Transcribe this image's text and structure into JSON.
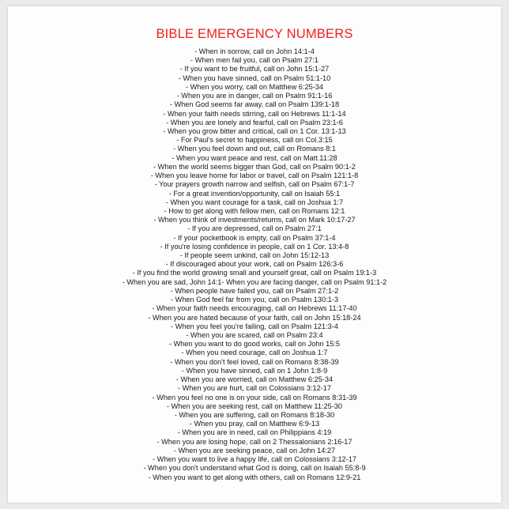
{
  "title": "BIBLE EMERGENCY NUMBERS",
  "colors": {
    "title": "#f0201c",
    "text": "#1a1a1a",
    "sheet": "#fdfdfd"
  },
  "items": [
    "- When in sorrow, call on John 14:1-4",
    "- When men fail you, call on Psalm 27:1",
    "- If you want to be fruitful, call on John 15:1-27",
    "- When you have sinned, call on Psalm 51:1-10",
    "- When you worry, call on Matthew 6:25-34",
    "- When you are in danger, call on Psalm 91:1-16",
    "- When God seems far away, call on Psalm 139:1-18",
    "- When your faith needs stirring, call on Hebrews 11:1-14",
    "- When you are lonely and fearful, call on Psalm 23:1-6",
    "- When you grow bitter and critical, call on 1 Cor. 13:1-13",
    "- For Paul's secret to happiness, call on Col.3:15",
    "- When you feel down and out, call on Romans 8:1",
    "- When you want peace and rest, call on Matt.11:28",
    "- When the world seems bigger than God, call on Psalm 90:1-2",
    "- When you leave home for labor or travel, call on Psalm 121:1-8",
    "- Your prayers growth narrow and selfish, call on Psalm 67:1-7",
    "- For a great invention/opportunity, call on Isaiah 55:1",
    "- When you want courage for a task, call on Joshua 1:7",
    "- How to get along with fellow men, call on Romans 12:1",
    "- When you think of investments/returns, call on Mark 10:17-27",
    "- If you are depressed, call on  Psalm 27:1",
    "- If your pocketbook is empty, call on Psalm 37:1-4",
    "- If you're losing confidence in people, call on 1 Cor. 13:4-8",
    "- If people seem unkind, call on John 15:12-13",
    "- If discouraged about your work, call on Psalm 126:3-6",
    "- If you find the world growing small and yourself great, call on Psalm 19:1-3",
    "- When you are sad, John 14:1- When you are facing danger, call on  Psalm 91:1-2",
    "- When people have failed you, call on  Psalm 27:1-2",
    "- When God feel far from you, call on  Psalm 130:1-3",
    "- When your faith needs encouraging, call on  Hebrews 11:17-40",
    "- When you are hated because of your faith, call on  John 15:18-24",
    "- When you feel you're failing, call on  Psalm 121:3-4",
    "- When you are scared, call on  Psalm 23:4",
    "- When you want to do good works, call on  John 15:5",
    "- When you need courage, call on  Joshua 1:7",
    "- When you don't feel loved, call on  Romans 8:38-39",
    "- When you have sinned, call on  1 John 1:8-9",
    "- When you are worried, call on  Matthew 6:25-34",
    "- When you are hurt, call on Colossians 3:12-17",
    "- When you feel no one is on your side, call on  Romans 8:31-39",
    "- When you are seeking rest, call on  Matthew 11:25-30",
    "- When you are suffering, call on  Romans 8:18-30",
    "- When you pray, call on  Matthew 6:9-13",
    "- When you are in need, call on Philippians 4:19",
    "- When you are losing hope, call on 2 Thessalonians 2:16-17",
    "- When you are seeking peace, call on  John 14:27",
    "- When you want to live a happy life, call on  Colossians 3:12-17",
    "- When you don't understand what God is doing, call on Isaiah 55:8-9",
    "- When you want to get along with others, call on  Romans 12:9-21"
  ]
}
